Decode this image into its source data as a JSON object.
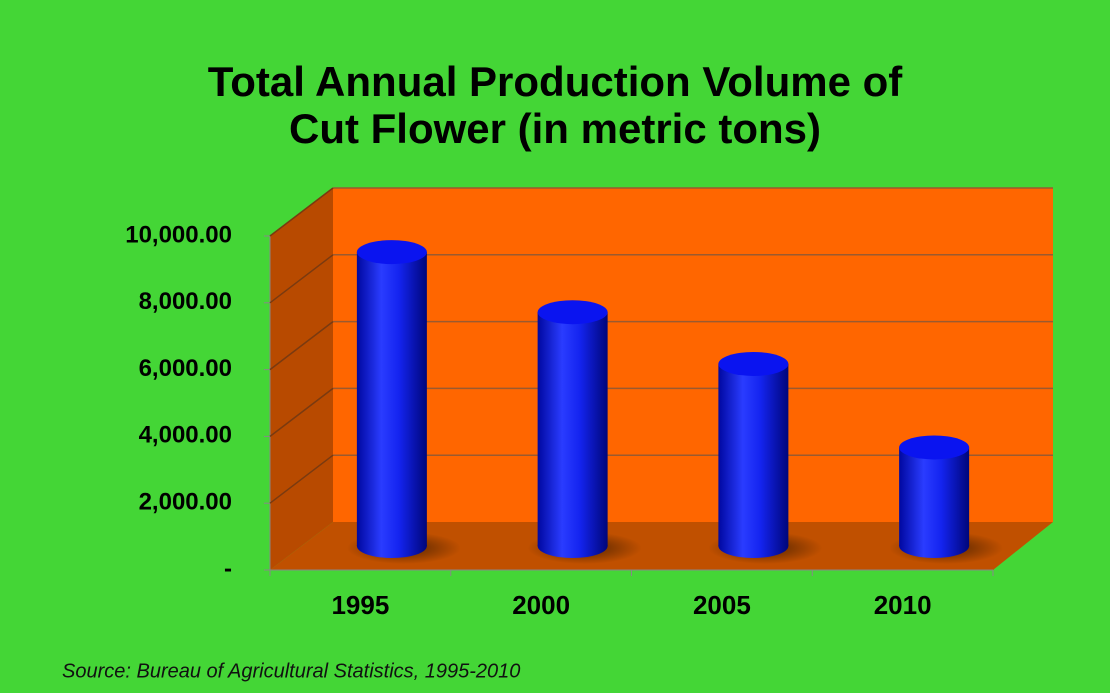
{
  "chart_data": {
    "type": "bar3d",
    "title": [
      "Total Annual Production Volume of",
      "Cut Flower (in metric tons)"
    ],
    "categories": [
      "1995",
      "2000",
      "2005",
      "2010"
    ],
    "values": [
      8800,
      7000,
      5450,
      2950
    ],
    "color": "#0a14f0",
    "ylim": [
      0,
      10000
    ],
    "yticks": [
      {
        "value": 0,
        "label": "-"
      },
      {
        "value": 2000,
        "label": "2,000.00"
      },
      {
        "value": 4000,
        "label": "4,000.00"
      },
      {
        "value": 6000,
        "label": "6,000.00"
      },
      {
        "value": 8000,
        "label": "8,000.00"
      },
      {
        "value": 10000,
        "label": "10,000.00"
      }
    ],
    "grid": true,
    "source": "Source: Bureau of Agricultural Statistics, 1995-2010"
  }
}
